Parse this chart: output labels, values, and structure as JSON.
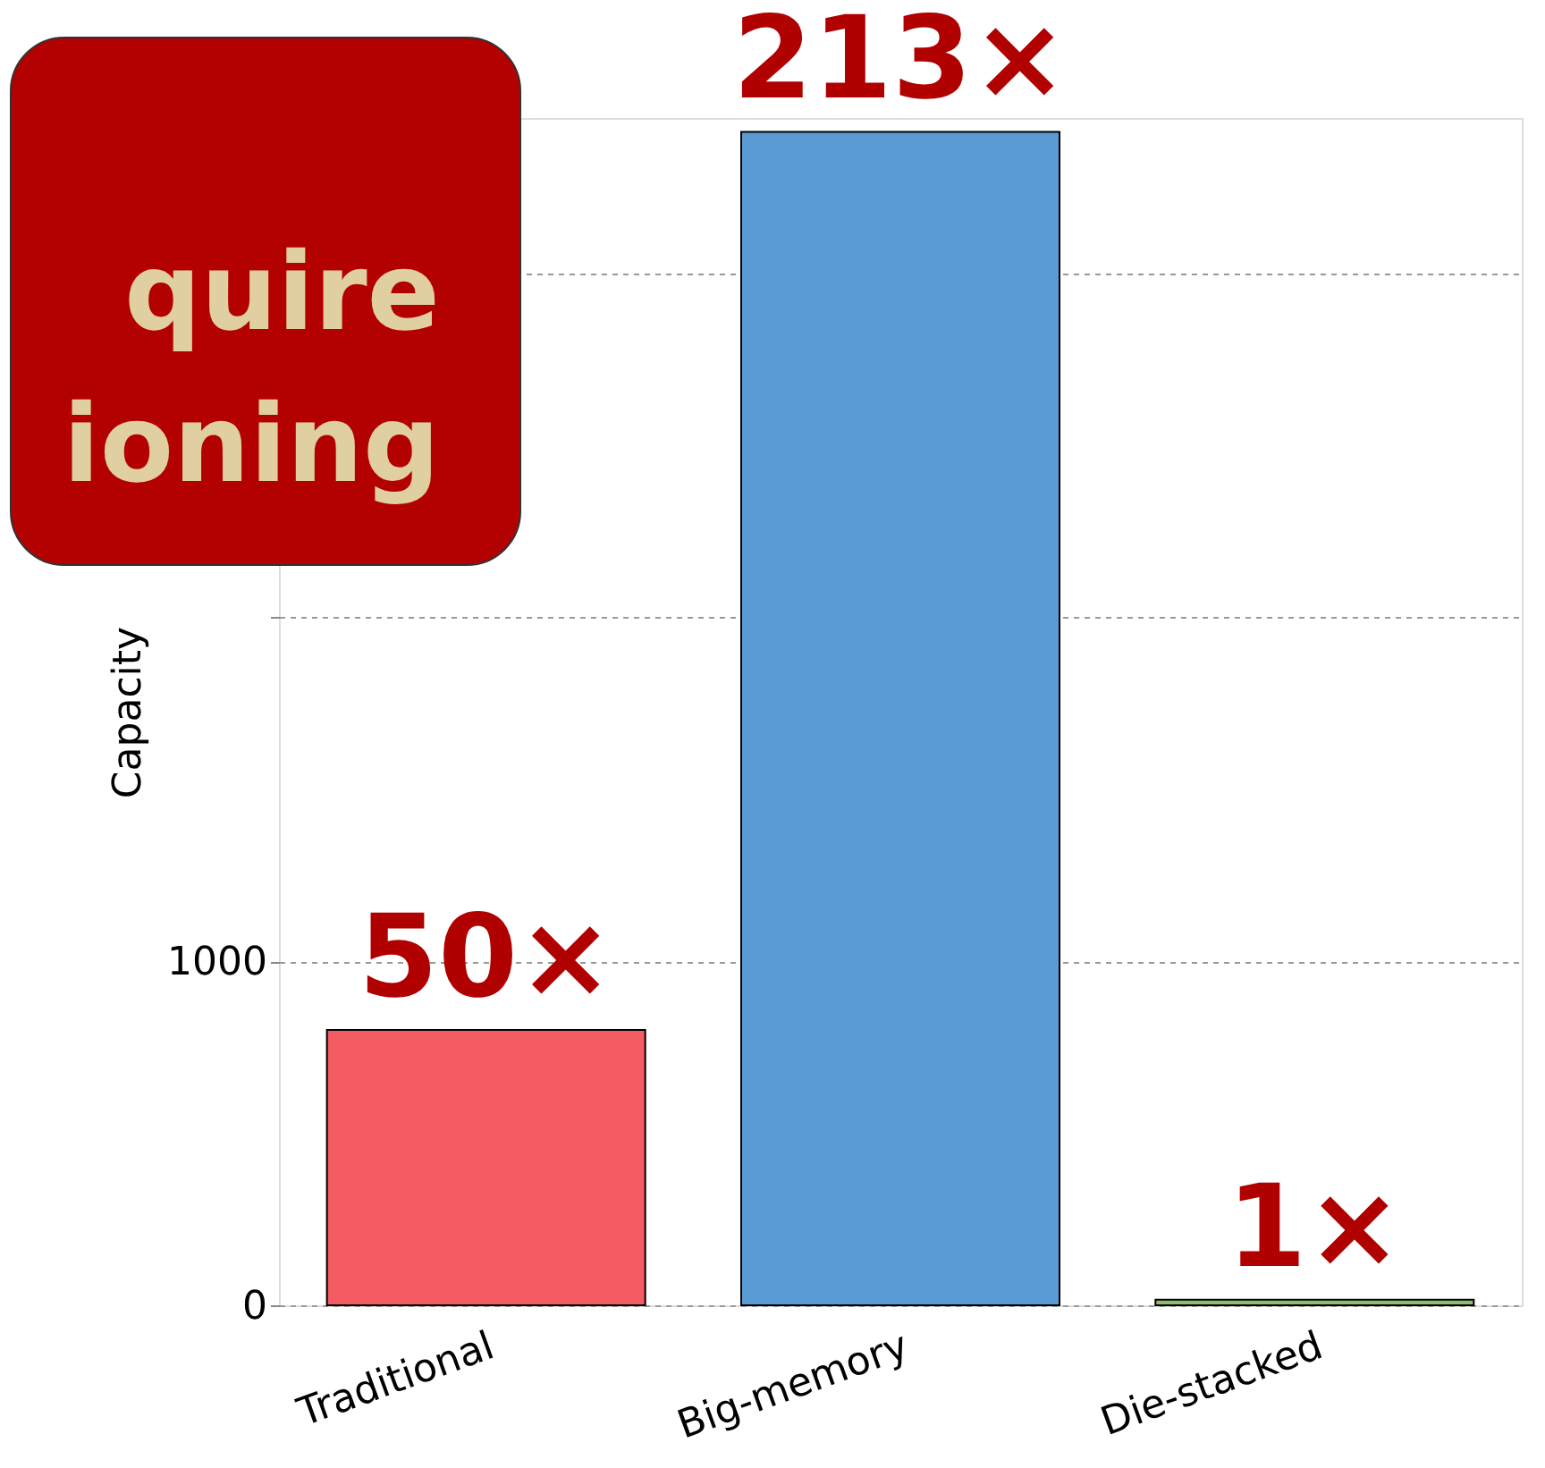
{
  "chart_data": {
    "type": "bar",
    "ylabel": "Capacity",
    "categories": [
      "Traditional",
      "Big-memory",
      "Die-stacked"
    ],
    "values": [
      800,
      3410,
      16
    ],
    "colors": [
      "#f25c62",
      "#5b9bd5",
      "#8fbc6c"
    ],
    "ylim": [
      0,
      3450
    ],
    "yticks": [
      0,
      1000,
      {
        "value": 2000,
        "label": null
      },
      {
        "value": 3000,
        "label": null
      }
    ],
    "grid": "y",
    "annotations": [
      {
        "text": "50×",
        "x": "Traditional",
        "y": 800
      },
      {
        "text": "213×",
        "x": "Big-memory",
        "y": 3410
      },
      {
        "text": "1×",
        "x": "Die-stacked",
        "y": 16
      },
      "quire\nioning"
    ]
  }
}
